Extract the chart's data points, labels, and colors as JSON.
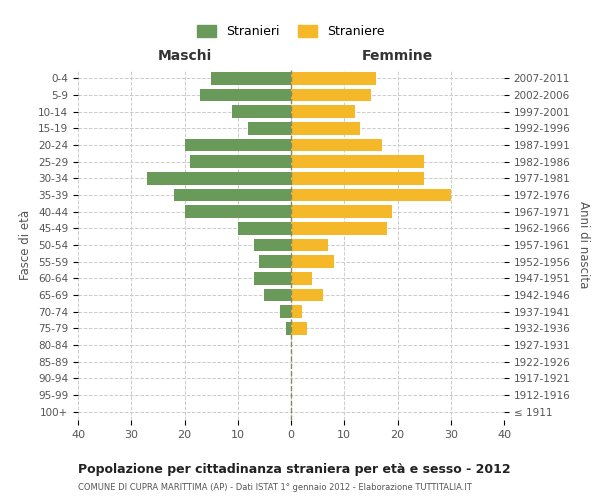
{
  "age_groups": [
    "100+",
    "95-99",
    "90-94",
    "85-89",
    "80-84",
    "75-79",
    "70-74",
    "65-69",
    "60-64",
    "55-59",
    "50-54",
    "45-49",
    "40-44",
    "35-39",
    "30-34",
    "25-29",
    "20-24",
    "15-19",
    "10-14",
    "5-9",
    "0-4"
  ],
  "birth_years": [
    "≤ 1911",
    "1912-1916",
    "1917-1921",
    "1922-1926",
    "1927-1931",
    "1932-1936",
    "1937-1941",
    "1942-1946",
    "1947-1951",
    "1952-1956",
    "1957-1961",
    "1962-1966",
    "1967-1971",
    "1972-1976",
    "1977-1981",
    "1982-1986",
    "1987-1991",
    "1992-1996",
    "1997-2001",
    "2002-2006",
    "2007-2011"
  ],
  "maschi": [
    0,
    0,
    0,
    0,
    0,
    1,
    2,
    5,
    7,
    6,
    7,
    10,
    20,
    22,
    27,
    19,
    20,
    8,
    11,
    17,
    15
  ],
  "femmine": [
    0,
    0,
    0,
    0,
    0,
    3,
    2,
    6,
    4,
    8,
    7,
    18,
    19,
    30,
    25,
    25,
    17,
    13,
    12,
    15,
    16
  ],
  "maschi_color": "#6a9a5a",
  "femmine_color": "#f5b829",
  "bg_color": "#ffffff",
  "grid_color": "#cccccc",
  "title": "Popolazione per cittadinanza straniera per età e sesso - 2012",
  "subtitle": "COMUNE DI CUPRA MARITTIMA (AP) - Dati ISTAT 1° gennaio 2012 - Elaborazione TUTTITALIA.IT",
  "xlabel_left": "Maschi",
  "xlabel_right": "Femmine",
  "ylabel_left": "Fasce di età",
  "ylabel_right": "Anni di nascita",
  "xlim": 40,
  "legend_maschi": "Stranieri",
  "legend_femmine": "Straniere"
}
